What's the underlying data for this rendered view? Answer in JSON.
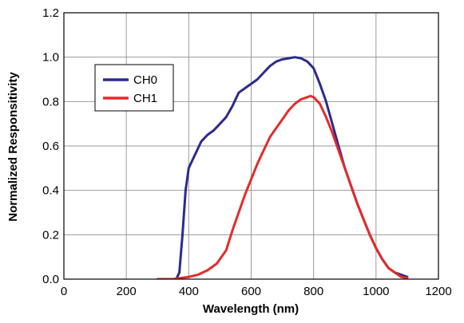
{
  "chart_data": {
    "type": "line",
    "xlabel": "Wavelength (nm)",
    "ylabel": "Normalized Responsitivity",
    "xlim": [
      0,
      1200
    ],
    "ylim": [
      0,
      1.2
    ],
    "x_ticks": [
      "0",
      "200",
      "400",
      "600",
      "800",
      "1000",
      "1200"
    ],
    "y_ticks": [
      "0.0",
      "0.2",
      "0.4",
      "0.6",
      "0.8",
      "1.0",
      "1.2"
    ],
    "grid": true,
    "legend": "upper-left",
    "series": [
      {
        "name": "CH0",
        "color": "#2b2b8c",
        "points": [
          [
            360,
            0.0
          ],
          [
            370,
            0.03
          ],
          [
            380,
            0.2
          ],
          [
            390,
            0.4
          ],
          [
            400,
            0.5
          ],
          [
            420,
            0.56
          ],
          [
            440,
            0.62
          ],
          [
            460,
            0.65
          ],
          [
            480,
            0.67
          ],
          [
            500,
            0.7
          ],
          [
            520,
            0.73
          ],
          [
            540,
            0.78
          ],
          [
            560,
            0.84
          ],
          [
            580,
            0.86
          ],
          [
            600,
            0.88
          ],
          [
            620,
            0.9
          ],
          [
            640,
            0.93
          ],
          [
            660,
            0.96
          ],
          [
            680,
            0.98
          ],
          [
            700,
            0.99
          ],
          [
            720,
            0.995
          ],
          [
            740,
            1.0
          ],
          [
            760,
            0.995
          ],
          [
            780,
            0.98
          ],
          [
            800,
            0.95
          ],
          [
            820,
            0.88
          ],
          [
            840,
            0.8
          ],
          [
            860,
            0.7
          ],
          [
            880,
            0.6
          ],
          [
            900,
            0.5
          ],
          [
            920,
            0.42
          ],
          [
            940,
            0.34
          ],
          [
            960,
            0.27
          ],
          [
            980,
            0.2
          ],
          [
            1000,
            0.14
          ],
          [
            1020,
            0.09
          ],
          [
            1040,
            0.05
          ],
          [
            1060,
            0.03
          ],
          [
            1080,
            0.02
          ],
          [
            1100,
            0.01
          ]
        ]
      },
      {
        "name": "CH1",
        "color": "#e32b2b",
        "points": [
          [
            300,
            0.0
          ],
          [
            350,
            0.0
          ],
          [
            400,
            0.01
          ],
          [
            430,
            0.02
          ],
          [
            460,
            0.04
          ],
          [
            490,
            0.07
          ],
          [
            520,
            0.13
          ],
          [
            540,
            0.22
          ],
          [
            560,
            0.3
          ],
          [
            580,
            0.38
          ],
          [
            600,
            0.45
          ],
          [
            620,
            0.52
          ],
          [
            640,
            0.58
          ],
          [
            660,
            0.64
          ],
          [
            680,
            0.68
          ],
          [
            700,
            0.72
          ],
          [
            720,
            0.76
          ],
          [
            740,
            0.79
          ],
          [
            760,
            0.81
          ],
          [
            780,
            0.82
          ],
          [
            790,
            0.825
          ],
          [
            800,
            0.82
          ],
          [
            820,
            0.79
          ],
          [
            840,
            0.73
          ],
          [
            860,
            0.66
          ],
          [
            880,
            0.58
          ],
          [
            900,
            0.5
          ],
          [
            920,
            0.42
          ],
          [
            940,
            0.34
          ],
          [
            960,
            0.27
          ],
          [
            980,
            0.2
          ],
          [
            1000,
            0.14
          ],
          [
            1020,
            0.09
          ],
          [
            1040,
            0.05
          ],
          [
            1060,
            0.03
          ],
          [
            1080,
            0.01
          ],
          [
            1100,
            0.005
          ]
        ]
      }
    ]
  }
}
